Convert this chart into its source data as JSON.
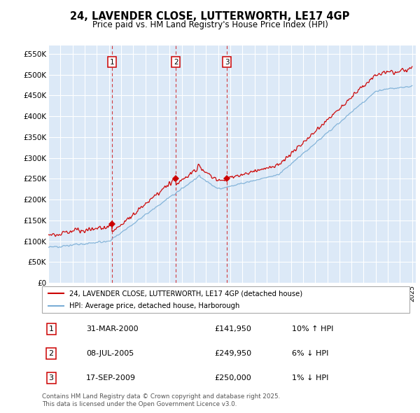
{
  "title": "24, LAVENDER CLOSE, LUTTERWORTH, LE17 4GP",
  "subtitle": "Price paid vs. HM Land Registry's House Price Index (HPI)",
  "plot_bg_color": "#dce9f7",
  "y_ticks": [
    0,
    50000,
    100000,
    150000,
    200000,
    250000,
    300000,
    350000,
    400000,
    450000,
    500000,
    550000
  ],
  "y_labels": [
    "£0",
    "£50K",
    "£100K",
    "£150K",
    "£200K",
    "£250K",
    "£300K",
    "£350K",
    "£400K",
    "£450K",
    "£500K",
    "£550K"
  ],
  "ylim": [
    0,
    570000
  ],
  "transactions": [
    {
      "label": "1",
      "date": 2000.25,
      "price": 141950,
      "hpi_diff": "10% ↑ HPI",
      "date_str": "31-MAR-2000",
      "price_str": "£141,950"
    },
    {
      "label": "2",
      "date": 2005.52,
      "price": 249950,
      "hpi_diff": "6% ↓ HPI",
      "date_str": "08-JUL-2005",
      "price_str": "£249,950"
    },
    {
      "label": "3",
      "date": 2009.72,
      "price": 250000,
      "hpi_diff": "1% ↓ HPI",
      "date_str": "17-SEP-2009",
      "price_str": "£250,000"
    }
  ],
  "red_color": "#cc0000",
  "blue_color": "#7aaed6",
  "legend_label_red": "24, LAVENDER CLOSE, LUTTERWORTH, LE17 4GP (detached house)",
  "legend_label_blue": "HPI: Average price, detached house, Harborough",
  "footer": "Contains HM Land Registry data © Crown copyright and database right 2025.\nThis data is licensed under the Open Government Licence v3.0."
}
